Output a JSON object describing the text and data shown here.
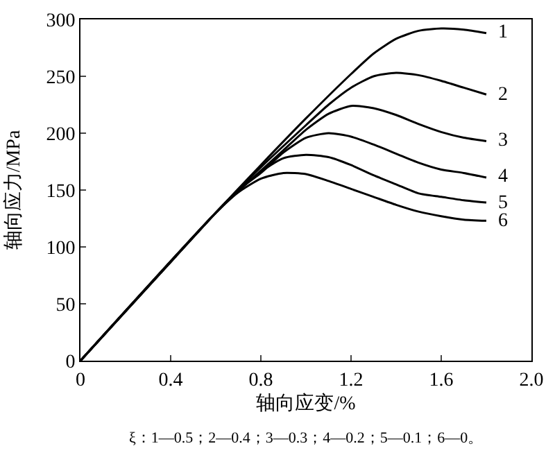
{
  "chart_data": {
    "type": "line",
    "xlabel": "轴向应变/%",
    "ylabel": "轴向应力/MPa",
    "annotations": [
      "ξ：1—0.5；2—0.4；3—0.3；4—0.2；5—0.1；6—0。"
    ],
    "xlim": [
      0,
      2.0
    ],
    "xticks": [
      0,
      0.4,
      0.8,
      1.2,
      1.6,
      {
        "value": 2,
        "label": "2.0"
      }
    ],
    "ylim": [
      0,
      300
    ],
    "yticks": [
      0,
      50,
      100,
      150,
      200,
      250,
      300
    ],
    "legend": false,
    "marker": "none",
    "line_style": "solid",
    "series": [
      {
        "name": "1",
        "color": "#000000",
        "x": [
          0,
          0.6,
          0.8,
          1.0,
          1.2,
          1.3,
          1.4,
          1.5,
          1.6,
          1.7,
          1.8
        ],
        "values": [
          0,
          130,
          172,
          213,
          252,
          270,
          283,
          290,
          292,
          291,
          288
        ]
      },
      {
        "name": "2",
        "color": "#000000",
        "x": [
          0,
          0.6,
          0.8,
          1.0,
          1.1,
          1.2,
          1.3,
          1.4,
          1.5,
          1.6,
          1.7,
          1.8
        ],
        "values": [
          0,
          130,
          170,
          207,
          225,
          240,
          250,
          253,
          251,
          246,
          240,
          234
        ]
      },
      {
        "name": "3",
        "color": "#000000",
        "x": [
          0,
          0.6,
          0.8,
          0.9,
          1.0,
          1.1,
          1.2,
          1.3,
          1.4,
          1.5,
          1.6,
          1.7,
          1.8
        ],
        "values": [
          0,
          130,
          167,
          185,
          203,
          217,
          224,
          222,
          216,
          208,
          201,
          196,
          193
        ]
      },
      {
        "name": "4",
        "color": "#000000",
        "x": [
          0,
          0.6,
          0.7,
          0.8,
          0.9,
          1.0,
          1.1,
          1.2,
          1.3,
          1.4,
          1.5,
          1.6,
          1.7,
          1.8
        ],
        "values": [
          0,
          130,
          150,
          165,
          183,
          196,
          200,
          197,
          190,
          182,
          174,
          168,
          165,
          161
        ]
      },
      {
        "name": "5",
        "color": "#000000",
        "x": [
          0,
          0.6,
          0.7,
          0.8,
          0.9,
          1.0,
          1.1,
          1.2,
          1.3,
          1.4,
          1.5,
          1.6,
          1.7,
          1.8
        ],
        "values": [
          0,
          130,
          150,
          166,
          178,
          181,
          179,
          172,
          163,
          155,
          147,
          144,
          141,
          139
        ]
      },
      {
        "name": "6",
        "color": "#000000",
        "x": [
          0,
          0.6,
          0.7,
          0.8,
          0.9,
          1.0,
          1.1,
          1.2,
          1.3,
          1.4,
          1.5,
          1.6,
          1.7,
          1.8
        ],
        "values": [
          0,
          130,
          148,
          160,
          165,
          164,
          158,
          151,
          144,
          137,
          131,
          127,
          124,
          123
        ]
      }
    ]
  }
}
